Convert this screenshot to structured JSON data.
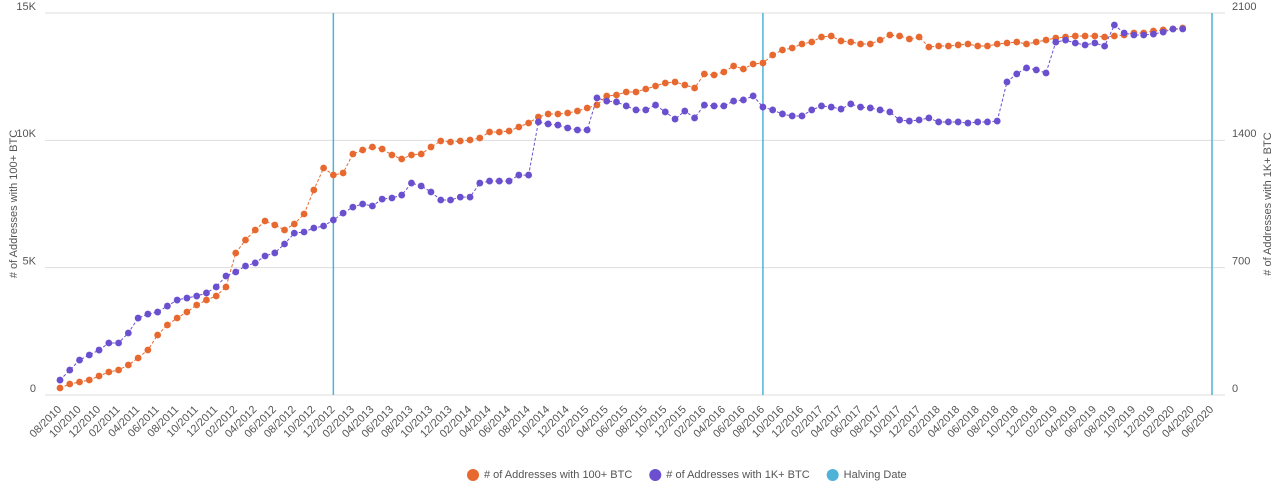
{
  "chart_data": {
    "type": "line",
    "ylabel": "# of Addresses with 100+ BTC",
    "y2label": "# of Addresses with 1K+ BTC",
    "categories": [
      "08/2010",
      null,
      "10/2010",
      null,
      "12/2010",
      null,
      "02/2011",
      null,
      "04/2011",
      null,
      "06/2011",
      null,
      "08/2011",
      null,
      "10/2011",
      null,
      "12/2011",
      null,
      "02/2012",
      null,
      "04/2012",
      null,
      "06/2012",
      null,
      "08/2012",
      null,
      "10/2012",
      null,
      "12/2012",
      null,
      "02/2013",
      null,
      "04/2013",
      null,
      "06/2013",
      null,
      "08/2013",
      null,
      "10/2013",
      null,
      "12/2013",
      null,
      "02/2014",
      null,
      "04/2014",
      null,
      "06/2014",
      null,
      "08/2014",
      null,
      "10/2014",
      null,
      "12/2014",
      null,
      "02/2015",
      null,
      "04/2015",
      null,
      "06/2015",
      null,
      "08/2015",
      null,
      "10/2015",
      null,
      "12/2015",
      null,
      "02/2016",
      null,
      "04/2016",
      null,
      "06/2016",
      null,
      "08/2016",
      null,
      "10/2016",
      null,
      "12/2016",
      null,
      "02/2017",
      null,
      "04/2017",
      null,
      "06/2017",
      null,
      "08/2017",
      null,
      "10/2017",
      null,
      "12/2017",
      null,
      "02/2018",
      null,
      "04/2018",
      null,
      "06/2018",
      null,
      "08/2018",
      null,
      "10/2018",
      null,
      "12/2018",
      null,
      "02/2019",
      null,
      "04/2019",
      null,
      "06/2019",
      null,
      "08/2019",
      null,
      "10/2019",
      null,
      "12/2019",
      null,
      "02/2020",
      null,
      "04/2020",
      null,
      "06/2020"
    ],
    "series": [
      {
        "name": "# of Addresses with 100+ BTC",
        "color": "#e8692f",
        "axis": "y",
        "values": [
          275,
          432,
          511,
          589,
          746,
          903,
          982,
          1178,
          1453,
          1767,
          2356,
          2749,
          3024,
          3259,
          3534,
          3730,
          3888,
          4241,
          5576,
          6087,
          6479,
          6833,
          6676,
          6479,
          6715,
          7108,
          8050,
          8914,
          8639,
          8718,
          9464,
          9621,
          9739,
          9660,
          9425,
          9268,
          9425,
          9464,
          9739,
          9974,
          9935,
          9974,
          10014,
          10092,
          10328,
          10328,
          10367,
          10524,
          10681,
          10917,
          11035,
          11035,
          11074,
          11153,
          11270,
          11388,
          11742,
          11781,
          11899,
          11899,
          12016,
          12134,
          12252,
          12291,
          12173,
          12056,
          12606,
          12566,
          12684,
          12920,
          12802,
          12998,
          13038,
          13352,
          13548,
          13627,
          13784,
          13862,
          14058,
          14098,
          13902,
          13862,
          13784,
          13784,
          13941,
          14137,
          14098,
          13980,
          14058,
          13666,
          13705,
          13705,
          13745,
          13784,
          13705,
          13705,
          13784,
          13823,
          13862,
          13784,
          13862,
          13941,
          14019,
          14058,
          14098,
          14098,
          14098,
          14058,
          14098,
          14137,
          14216,
          14216,
          14294,
          14334,
          14373,
          14412,
          null,
          null,
          null
        ]
      },
      {
        "name": "# of Addresses with 1K+ BTC",
        "color": "#6a4fcf",
        "axis": "y2",
        "values": [
          82,
          137,
          192,
          220,
          247,
          286,
          286,
          341,
          423,
          445,
          456,
          489,
          522,
          533,
          544,
          561,
          594,
          654,
          676,
          709,
          726,
          764,
          781,
          830,
          890,
          896,
          918,
          929,
          962,
          1000,
          1033,
          1050,
          1039,
          1077,
          1083,
          1099,
          1165,
          1149,
          1116,
          1072,
          1072,
          1088,
          1088,
          1165,
          1176,
          1176,
          1176,
          1209,
          1209,
          1501,
          1490,
          1484,
          1468,
          1457,
          1457,
          1633,
          1616,
          1611,
          1589,
          1567,
          1567,
          1594,
          1556,
          1517,
          1561,
          1523,
          1594,
          1589,
          1589,
          1616,
          1622,
          1644,
          1583,
          1567,
          1545,
          1534,
          1534,
          1567,
          1589,
          1583,
          1572,
          1600,
          1583,
          1578,
          1567,
          1556,
          1512,
          1506,
          1512,
          1523,
          1501,
          1501,
          1501,
          1495,
          1501,
          1501,
          1506,
          1721,
          1765,
          1798,
          1787,
          1770,
          1940,
          1951,
          1935,
          1924,
          1935,
          1918,
          2034,
          1990,
          1979,
          1979,
          1984,
          1995,
          2012,
          2012,
          null,
          null,
          null
        ]
      }
    ],
    "halving": {
      "name": "Halving Date",
      "color": "#4fb3d9",
      "at": [
        "12/2012",
        "08/2016",
        "06/2020"
      ]
    },
    "ylim": [
      0,
      15000
    ],
    "yticks": [
      {
        "value": 0,
        "label": "0"
      },
      {
        "value": 5000,
        "label": "5K"
      },
      {
        "value": 10000,
        "label": "10K"
      },
      {
        "value": 15000,
        "label": "15K"
      }
    ],
    "y2lim": [
      0,
      2100
    ],
    "y2ticks": [
      0,
      700,
      1400,
      2100
    ],
    "grid": true,
    "legend": "bottom"
  }
}
